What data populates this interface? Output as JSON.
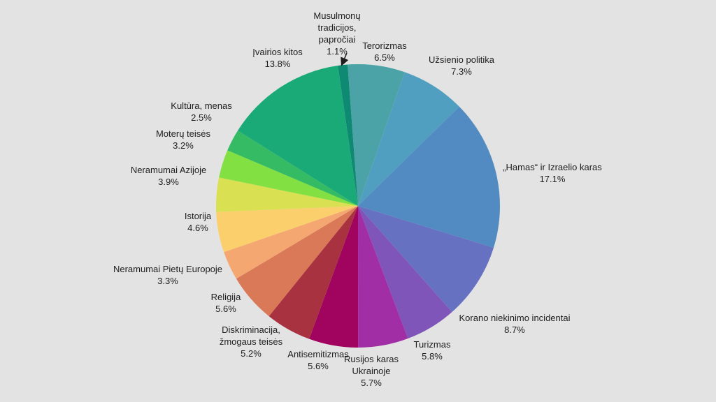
{
  "chart_data": {
    "type": "pie",
    "title": "",
    "slices": [
      {
        "name": "Terorizmas",
        "lines": [
          "Terorizmas"
        ],
        "value": 6.5,
        "label": "6.5%",
        "color": "#4ba3a8"
      },
      {
        "name": "Užsienio politika",
        "lines": [
          "Užsienio politika"
        ],
        "value": 7.3,
        "label": "7.3%",
        "color": "#519fc0"
      },
      {
        "name": "„Hamas“ ir Izraelio karas",
        "lines": [
          "„Hamas“ ir Izraelio karas"
        ],
        "value": 17.1,
        "label": "17.1%",
        "color": "#528bc1"
      },
      {
        "name": "Korano niekinimo incidentai",
        "lines": [
          "Korano niekinimo incidentai"
        ],
        "value": 8.7,
        "label": "8.7%",
        "color": "#6771c1"
      },
      {
        "name": "Turizmas",
        "lines": [
          "Turizmas"
        ],
        "value": 5.8,
        "label": "5.8%",
        "color": "#8055b9"
      },
      {
        "name": "Rusijos karas Ukrainoje",
        "lines": [
          "Rusijos karas",
          "Ukrainoje"
        ],
        "value": 5.7,
        "label": "5.7%",
        "color": "#a22ea6"
      },
      {
        "name": "Antisemitizmas",
        "lines": [
          "Antisemitizmas"
        ],
        "value": 5.6,
        "label": "5.6%",
        "color": "#a0045e"
      },
      {
        "name": "Diskriminacija, žmogaus teisės",
        "lines": [
          "Diskriminacija,",
          "žmogaus teisės"
        ],
        "value": 5.2,
        "label": "5.2%",
        "color": "#a83240"
      },
      {
        "name": "Religija",
        "lines": [
          "Religija"
        ],
        "value": 5.6,
        "label": "5.6%",
        "color": "#d97958"
      },
      {
        "name": "Neramumai Pietų Europoje",
        "lines": [
          "Neramumai Pietų Europoje"
        ],
        "value": 3.3,
        "label": "3.3%",
        "color": "#f5a772"
      },
      {
        "name": "Istorija",
        "lines": [
          "Istorija"
        ],
        "value": 4.6,
        "label": "4.6%",
        "color": "#fbd06c"
      },
      {
        "name": "Neramumai Azijoje",
        "lines": [
          "Neramumai Azijoje"
        ],
        "value": 3.9,
        "label": "3.9%",
        "color": "#d9e052"
      },
      {
        "name": "Moterų teisės",
        "lines": [
          "Moterų teisės"
        ],
        "value": 3.2,
        "label": "3.2%",
        "color": "#82e042"
      },
      {
        "name": "Kultūra, menas",
        "lines": [
          "Kultūra, menas"
        ],
        "value": 2.5,
        "label": "2.5%",
        "color": "#34bb63"
      },
      {
        "name": "Įvairios kitos",
        "lines": [
          "Įvairios kitos"
        ],
        "value": 13.8,
        "label": "13.8%",
        "color": "#1aaa78"
      },
      {
        "name": "Musulmonų tradicijos, papročiai",
        "lines": [
          "Musulmonų",
          "tradicijos,",
          "papročiai"
        ],
        "value": 1.1,
        "label": "1.1%",
        "color": "#0e8a72"
      }
    ]
  }
}
